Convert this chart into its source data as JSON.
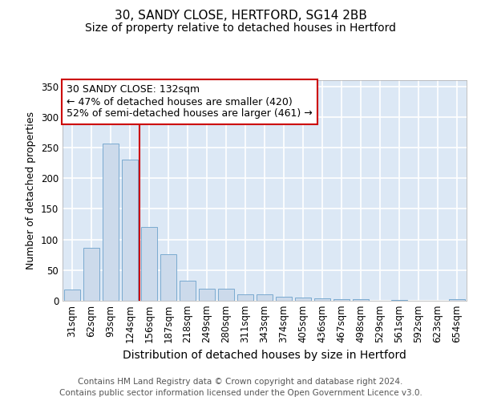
{
  "title1": "30, SANDY CLOSE, HERTFORD, SG14 2BB",
  "title2": "Size of property relative to detached houses in Hertford",
  "xlabel": "Distribution of detached houses by size in Hertford",
  "ylabel": "Number of detached properties",
  "categories": [
    "31sqm",
    "62sqm",
    "93sqm",
    "124sqm",
    "156sqm",
    "187sqm",
    "218sqm",
    "249sqm",
    "280sqm",
    "311sqm",
    "343sqm",
    "374sqm",
    "405sqm",
    "436sqm",
    "467sqm",
    "498sqm",
    "529sqm",
    "561sqm",
    "592sqm",
    "623sqm",
    "654sqm"
  ],
  "values": [
    18,
    86,
    257,
    230,
    120,
    76,
    33,
    19,
    20,
    10,
    10,
    6,
    5,
    4,
    3,
    3,
    0,
    1,
    0,
    0,
    3
  ],
  "bar_color": "#ccdaeb",
  "bar_edge_color": "#7aaad0",
  "vline_x": 3.5,
  "vline_color": "#cc0000",
  "annotation_text": "30 SANDY CLOSE: 132sqm\n← 47% of detached houses are smaller (420)\n52% of semi-detached houses are larger (461) →",
  "annotation_box_facecolor": "#ffffff",
  "annotation_box_edge": "#cc0000",
  "ylim": [
    0,
    360
  ],
  "yticks": [
    0,
    50,
    100,
    150,
    200,
    250,
    300,
    350
  ],
  "footer": "Contains HM Land Registry data © Crown copyright and database right 2024.\nContains public sector information licensed under the Open Government Licence v3.0.",
  "fig_facecolor": "#ffffff",
  "plot_bg_color": "#dce8f5",
  "grid_color": "#ffffff",
  "title1_fontsize": 11,
  "title2_fontsize": 10,
  "xlabel_fontsize": 10,
  "ylabel_fontsize": 9,
  "tick_fontsize": 8.5,
  "annot_fontsize": 9,
  "footer_fontsize": 7.5
}
